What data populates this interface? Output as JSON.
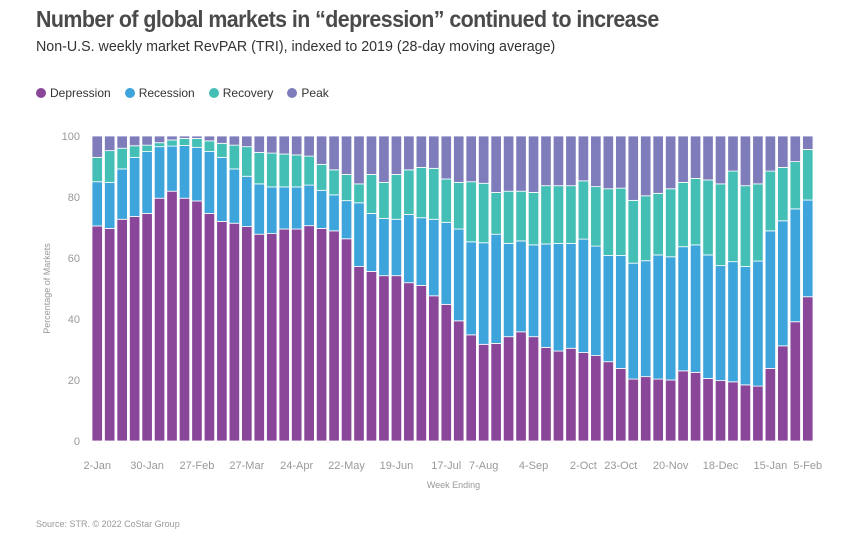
{
  "chart_data": {
    "type": "bar",
    "stacked": true,
    "title": "Number of global markets in “depression” continued to increase",
    "subtitle": "Non-U.S. weekly market RevPAR (TRI), indexed to 2019 (28-day moving average)",
    "xlabel": "Week Ending",
    "ylabel": "Percentage of Markets",
    "ylim": [
      0,
      100
    ],
    "yticks": [
      0,
      20,
      40,
      60,
      80,
      100
    ],
    "grid": false,
    "legend_placement": "top-left",
    "categories": [
      "2-Jan",
      "",
      "",
      "",
      "30-Jan",
      "",
      "",
      "",
      "27-Feb",
      "",
      "",
      "",
      "27-Mar",
      "",
      "",
      "",
      "24-Apr",
      "",
      "",
      "",
      "22-May",
      "",
      "",
      "",
      "19-Jun",
      "",
      "",
      "",
      "17-Jul",
      "",
      "",
      "7-Aug",
      "",
      "",
      "",
      "4-Sep",
      "",
      "",
      "",
      "2-Oct",
      "",
      "",
      "23-Oct",
      "",
      "",
      "",
      "20-Nov",
      "",
      "",
      "",
      "18-Dec",
      "",
      "",
      "",
      "15-Jan",
      "",
      "",
      "5-Feb"
    ],
    "series": [
      {
        "name": "Depression",
        "color": "#8a4799",
        "values": [
          70.5,
          69.7,
          72.7,
          73.6,
          74.6,
          79.6,
          81.9,
          79.6,
          78.7,
          74.6,
          72.0,
          71.4,
          70.3,
          67.8,
          68.0,
          69.5,
          69.5,
          70.6,
          69.7,
          68.9,
          66.3,
          57.2,
          55.6,
          54.2,
          54.2,
          51.9,
          51.0,
          47.6,
          44.8,
          39.4,
          34.8,
          31.7,
          32.0,
          34.2,
          35.8,
          34.2,
          30.7,
          29.5,
          30.4,
          29.0,
          28.0,
          26.0,
          23.8,
          20.3,
          21.1,
          20.3,
          20.0,
          23.0,
          22.5,
          20.5,
          19.8,
          19.4,
          18.4,
          18.0,
          23.8,
          31.2,
          39.1,
          47.3
        ]
      },
      {
        "name": "Recession",
        "color": "#3ea4dc",
        "values": [
          14.5,
          15.1,
          16.5,
          19.4,
          20.3,
          16.9,
          14.8,
          17.3,
          17.6,
          20.3,
          21.0,
          17.8,
          16.5,
          16.5,
          15.3,
          13.8,
          13.8,
          13.3,
          12.5,
          11.8,
          12.5,
          20.9,
          19.0,
          18.8,
          18.5,
          22.4,
          22.2,
          25.1,
          26.9,
          30.1,
          30.5,
          33.3,
          35.8,
          30.6,
          29.8,
          30.1,
          33.9,
          35.3,
          34.4,
          37.2,
          35.9,
          34.8,
          37.0,
          38.0,
          38.0,
          40.7,
          40.4,
          40.7,
          41.8,
          40.5,
          37.7,
          39.4,
          38.8,
          41.0,
          45.1,
          41.0,
          37.0,
          31.7
        ]
      },
      {
        "name": "Recovery",
        "color": "#43bfb5",
        "values": [
          8.0,
          10.4,
          6.8,
          3.8,
          2.1,
          1.3,
          2.0,
          2.3,
          2.9,
          3.5,
          4.6,
          7.8,
          9.7,
          10.3,
          11.1,
          10.8,
          10.5,
          9.5,
          8.5,
          8.2,
          8.6,
          6.2,
          12.8,
          11.8,
          14.7,
          14.6,
          16.5,
          16.7,
          14.2,
          15.3,
          19.7,
          19.5,
          13.7,
          17.1,
          16.3,
          17.2,
          19.1,
          18.9,
          18.9,
          19.1,
          19.5,
          21.9,
          22.1,
          20.6,
          21.3,
          20.2,
          22.3,
          21.1,
          21.8,
          24.6,
          26.8,
          29.7,
          26.5,
          25.3,
          19.6,
          17.5,
          15.5,
          16.6
        ]
      },
      {
        "name": "Peak",
        "color": "#7e7cbb",
        "values": [
          7.0,
          4.8,
          4.0,
          3.2,
          3.0,
          2.2,
          1.3,
          0.8,
          0.8,
          1.6,
          2.4,
          3.0,
          3.5,
          5.4,
          5.6,
          5.9,
          6.2,
          6.6,
          9.3,
          11.1,
          12.6,
          15.7,
          12.6,
          15.2,
          12.6,
          11.1,
          10.3,
          10.6,
          14.1,
          15.2,
          15.0,
          15.5,
          18.5,
          18.1,
          18.1,
          18.5,
          16.3,
          16.3,
          16.3,
          14.7,
          16.6,
          17.3,
          17.1,
          21.1,
          19.6,
          18.8,
          17.3,
          15.2,
          13.9,
          14.4,
          15.7,
          11.5,
          16.3,
          15.7,
          11.5,
          10.3,
          8.4,
          4.4
        ]
      }
    ]
  },
  "source": "Source: STR. © 2022 CoStar Group"
}
